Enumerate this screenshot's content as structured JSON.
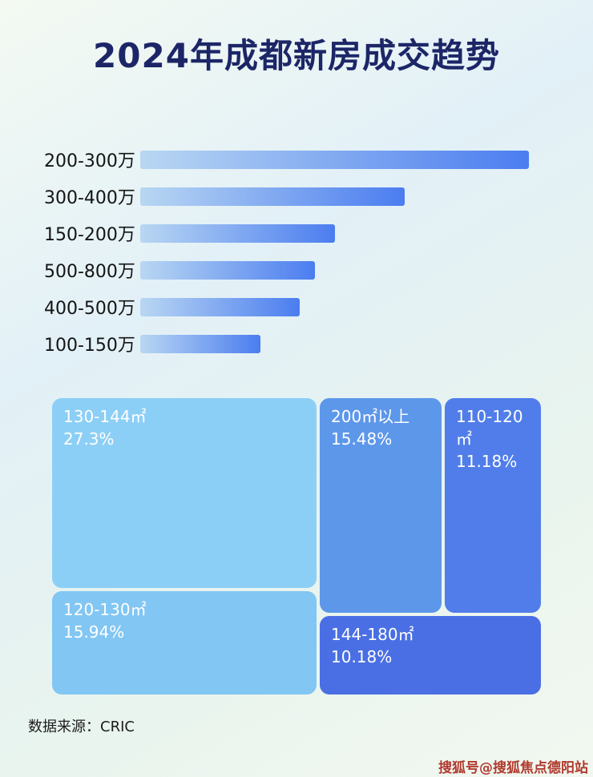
{
  "chart_data": [
    {
      "type": "bar",
      "orientation": "horizontal",
      "title": "2024年成都新房成交趋势",
      "categories": [
        "200-300万",
        "300-400万",
        "150-200万",
        "500-800万",
        "400-500万",
        "100-150万"
      ],
      "values": [
        100,
        68,
        50,
        45,
        41,
        31
      ],
      "value_note": "no numeric data labels shown in image; values are bar lengths as percent of the longest bar",
      "data_labels": false,
      "grid": false,
      "legend": false
    },
    {
      "type": "treemap",
      "items": [
        {
          "label": "130-144㎡",
          "pct": "27.3%",
          "value": 27.3,
          "color": "#8ccff6"
        },
        {
          "label": "200㎡以上",
          "pct": "15.48%",
          "value": 15.48,
          "color": "#5d97ea"
        },
        {
          "label": "110-120㎡",
          "pct": "11.18%",
          "value": 11.18,
          "color": "#507de9"
        },
        {
          "label": "120-130㎡",
          "pct": "15.94%",
          "value": 15.94,
          "color": "#82c6f3"
        },
        {
          "label": "144-180㎡",
          "pct": "10.18%",
          "value": 10.18,
          "color": "#4a6fe4"
        }
      ]
    }
  ],
  "footer": {
    "source": "数据来源：CRIC",
    "watermark": "搜狐号@搜狐焦点德阳站"
  },
  "colors": {
    "title": "#1c2667",
    "bar-from": "#b9d7f2",
    "bar-to": "#4b7df0",
    "watermark": "#b03a2e"
  }
}
